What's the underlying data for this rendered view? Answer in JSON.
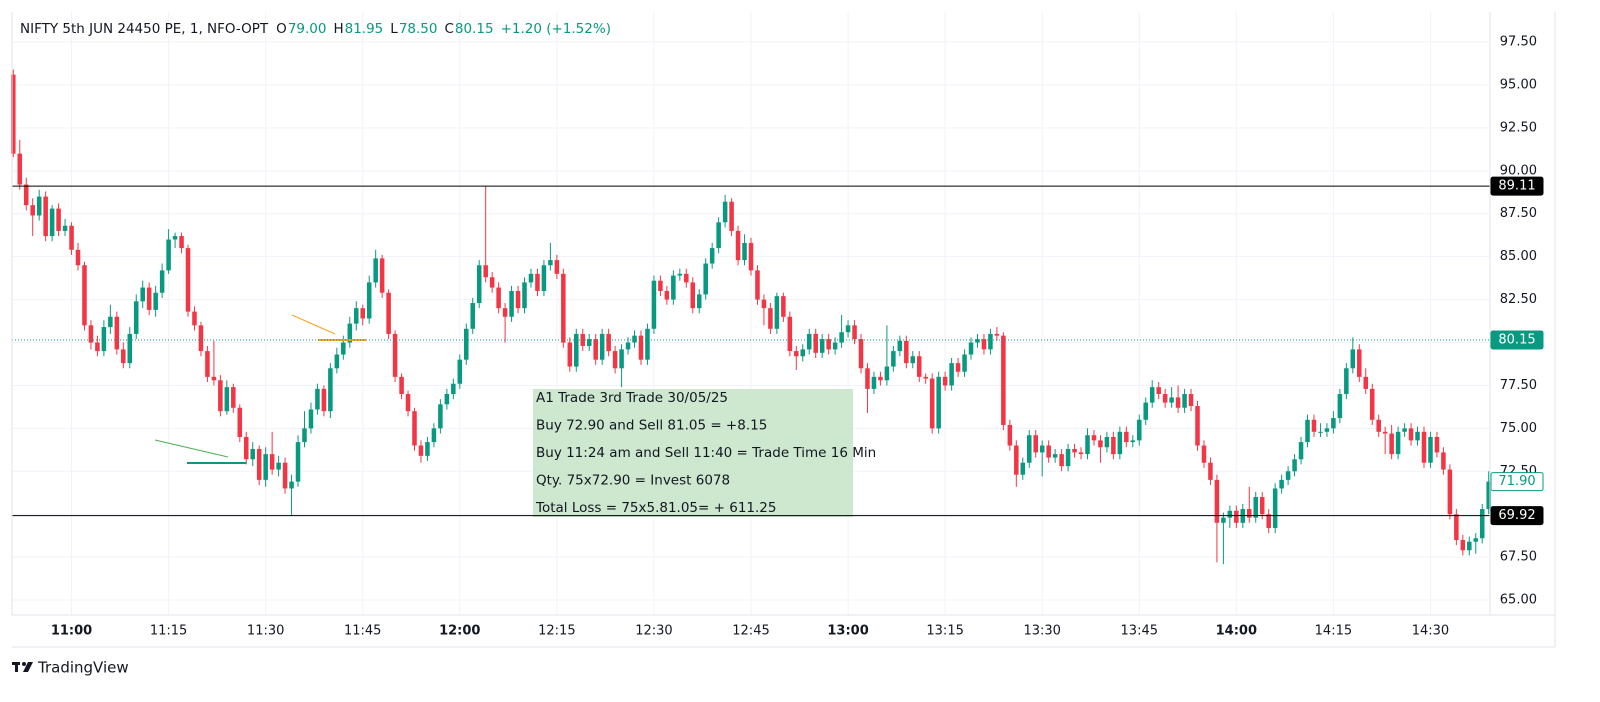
{
  "chart_data": {
    "type": "candlestick",
    "title": "NIFTY 5th JUN 24450 PE, 1, NFO-OPT",
    "ohlc_header": [
      {
        "key": "O",
        "value": "79.00"
      },
      {
        "key": "H",
        "value": "81.95"
      },
      {
        "key": "L",
        "value": "78.50"
      },
      {
        "key": "C",
        "value": "80.15"
      }
    ],
    "change": "+1.20 (+1.52%)",
    "up_color": "#089981",
    "down_color": "#f23645",
    "xlim": [
      -0.2,
      228.2
    ],
    "ylim": [
      64.13,
      99.25
    ],
    "xticks": [
      {
        "value": 9,
        "label": "11:00"
      },
      {
        "value": 24,
        "label": "11:15"
      },
      {
        "value": 39,
        "label": "11:30"
      },
      {
        "value": 54,
        "label": "11:45"
      },
      {
        "value": 69,
        "label": "12:00"
      },
      {
        "value": 84,
        "label": "12:15"
      },
      {
        "value": 99,
        "label": "12:30"
      },
      {
        "value": 114,
        "label": "12:45"
      },
      {
        "value": 129,
        "label": "13:00"
      },
      {
        "value": 144,
        "label": "13:15"
      },
      {
        "value": 159,
        "label": "13:30"
      },
      {
        "value": 174,
        "label": "13:45"
      },
      {
        "value": 189,
        "label": "14:00"
      },
      {
        "value": 204,
        "label": "14:15"
      },
      {
        "value": 219,
        "label": "14:30"
      }
    ],
    "yticks": [
      {
        "value": 65,
        "label": "65.00"
      },
      {
        "value": 67.5,
        "label": "67.50"
      },
      {
        "value": 70,
        "label": "70.00"
      },
      {
        "value": 72.5,
        "label": "72.50"
      },
      {
        "value": 75,
        "label": "75.00"
      },
      {
        "value": 77.5,
        "label": "77.50"
      },
      {
        "value": 80,
        "label": "80.00"
      },
      {
        "value": 82.5,
        "label": "82.50"
      },
      {
        "value": 85,
        "label": "85.00"
      },
      {
        "value": 87.5,
        "label": "87.50"
      },
      {
        "value": 90,
        "label": "90.00"
      },
      {
        "value": 92.5,
        "label": "92.50"
      },
      {
        "value": 95,
        "label": "95.00"
      },
      {
        "value": 97.5,
        "label": "97.50"
      }
    ],
    "grid": true,
    "price_lines": [
      {
        "value": 89.11,
        "style": "solid",
        "color": "#000000"
      },
      {
        "value": 80.15,
        "style": "dotted",
        "color": "#089981"
      },
      {
        "value": 71.9,
        "label": "71.90",
        "style": "none",
        "color": "#089981"
      },
      {
        "value": 69.92,
        "style": "solid",
        "color": "#000000"
      }
    ],
    "annotation": [
      "A1 Trade  3rd Trade 30/05/25",
      "Buy 72.90 and Sell 81.05 =  +8.15",
      "Buy 11:24 am and Sell 11:40 = Trade Time 16 Min",
      "Qty. 75x72.90 = Invest 6078",
      "Total Loss = 75x5.81.05= + 611.25"
    ],
    "brand": "TradingView",
    "candles": [
      [
        95.6,
        95.9,
        90.8,
        91.0
      ],
      [
        91.0,
        91.8,
        88.9,
        89.2
      ],
      [
        89.2,
        89.6,
        87.7,
        88.0
      ],
      [
        88.0,
        88.4,
        86.2,
        87.4
      ],
      [
        87.4,
        88.9,
        87.1,
        88.5
      ],
      [
        88.5,
        88.8,
        85.9,
        86.2
      ],
      [
        86.2,
        88.0,
        85.9,
        87.8
      ],
      [
        87.8,
        88.1,
        86.2,
        86.5
      ],
      [
        86.5,
        87.2,
        86.2,
        86.8
      ],
      [
        86.8,
        87.0,
        85.1,
        85.4
      ],
      [
        85.4,
        85.8,
        84.2,
        84.5
      ],
      [
        84.5,
        84.7,
        80.7,
        81.0
      ],
      [
        81.0,
        81.3,
        79.6,
        80.0
      ],
      [
        80.0,
        80.4,
        79.2,
        79.5
      ],
      [
        79.5,
        81.3,
        79.2,
        80.9
      ],
      [
        80.9,
        82.2,
        80.5,
        81.5
      ],
      [
        81.5,
        81.8,
        79.3,
        79.6
      ],
      [
        79.6,
        80.0,
        78.5,
        78.8
      ],
      [
        78.8,
        80.9,
        78.5,
        80.5
      ],
      [
        80.5,
        82.8,
        80.2,
        82.4
      ],
      [
        82.4,
        83.6,
        82.0,
        83.2
      ],
      [
        83.2,
        83.5,
        81.6,
        81.9
      ],
      [
        81.9,
        83.3,
        81.5,
        82.9
      ],
      [
        82.9,
        84.6,
        82.6,
        84.2
      ],
      [
        84.2,
        86.6,
        84.0,
        86.0
      ],
      [
        86.0,
        86.4,
        85.5,
        86.2
      ],
      [
        86.2,
        86.4,
        85.2,
        85.5
      ],
      [
        85.5,
        85.7,
        81.5,
        81.8
      ],
      [
        81.8,
        82.1,
        80.7,
        81.0
      ],
      [
        81.0,
        81.2,
        79.2,
        79.5
      ],
      [
        79.5,
        79.8,
        77.7,
        78.0
      ],
      [
        78.0,
        80.1,
        77.5,
        77.8
      ],
      [
        77.8,
        78.1,
        75.7,
        76.0
      ],
      [
        76.0,
        77.8,
        75.8,
        77.4
      ],
      [
        77.4,
        77.6,
        75.9,
        76.2
      ],
      [
        76.2,
        76.4,
        74.2,
        74.5
      ],
      [
        74.5,
        74.8,
        72.9,
        73.2
      ],
      [
        73.2,
        74.2,
        72.8,
        73.8
      ],
      [
        73.8,
        74.0,
        71.7,
        72.0
      ],
      [
        72.0,
        73.9,
        71.6,
        73.5
      ],
      [
        73.5,
        74.8,
        72.3,
        72.6
      ],
      [
        72.6,
        73.4,
        72.2,
        73.0
      ],
      [
        73.0,
        73.3,
        71.2,
        71.5
      ],
      [
        71.5,
        72.3,
        69.9,
        71.9
      ],
      [
        71.9,
        74.6,
        71.6,
        74.2
      ],
      [
        74.2,
        76.0,
        73.9,
        75.0
      ],
      [
        75.0,
        76.5,
        74.7,
        76.1
      ],
      [
        76.1,
        77.6,
        75.8,
        77.3
      ],
      [
        77.3,
        77.5,
        75.7,
        76.0
      ],
      [
        76.0,
        78.8,
        75.6,
        78.5
      ],
      [
        78.5,
        79.7,
        78.2,
        79.3
      ],
      [
        79.3,
        80.4,
        79.0,
        80.0
      ],
      [
        80.0,
        81.5,
        79.7,
        81.1
      ],
      [
        81.1,
        82.4,
        80.7,
        82.0
      ],
      [
        82.0,
        82.2,
        81.0,
        81.4
      ],
      [
        81.4,
        83.9,
        81.1,
        83.5
      ],
      [
        83.5,
        85.4,
        83.2,
        84.9
      ],
      [
        84.9,
        85.1,
        82.6,
        82.9
      ],
      [
        82.9,
        83.1,
        80.2,
        80.5
      ],
      [
        80.5,
        80.7,
        77.7,
        78.0
      ],
      [
        78.0,
        78.2,
        76.7,
        77.0
      ],
      [
        77.0,
        77.2,
        75.7,
        76.0
      ],
      [
        76.0,
        76.2,
        73.7,
        74.0
      ],
      [
        74.0,
        74.3,
        73.0,
        73.4
      ],
      [
        73.4,
        74.5,
        73.1,
        74.2
      ],
      [
        74.2,
        75.3,
        73.9,
        75.0
      ],
      [
        75.0,
        76.7,
        74.7,
        76.4
      ],
      [
        76.4,
        77.3,
        76.1,
        77.0
      ],
      [
        77.0,
        77.9,
        76.7,
        77.6
      ],
      [
        77.6,
        79.3,
        77.3,
        79.0
      ],
      [
        79.0,
        81.1,
        78.7,
        80.8
      ],
      [
        80.8,
        82.6,
        80.5,
        82.3
      ],
      [
        82.3,
        84.8,
        82.0,
        84.5
      ],
      [
        84.5,
        89.1,
        83.5,
        83.8
      ],
      [
        83.8,
        84.1,
        82.9,
        83.2
      ],
      [
        83.2,
        83.5,
        81.7,
        82.0
      ],
      [
        82.0,
        82.3,
        80.0,
        81.5
      ],
      [
        81.5,
        83.3,
        81.2,
        83.0
      ],
      [
        83.0,
        83.3,
        81.7,
        82.0
      ],
      [
        82.0,
        83.8,
        81.7,
        83.5
      ],
      [
        83.5,
        84.3,
        83.2,
        84.0
      ],
      [
        84.0,
        84.3,
        82.7,
        83.0
      ],
      [
        83.0,
        84.8,
        82.7,
        84.5
      ],
      [
        84.5,
        85.8,
        84.2,
        84.8
      ],
      [
        84.8,
        85.1,
        83.7,
        84.0
      ],
      [
        84.0,
        84.3,
        79.7,
        80.0
      ],
      [
        80.0,
        80.3,
        78.3,
        78.6
      ],
      [
        78.6,
        80.8,
        78.3,
        80.5
      ],
      [
        80.5,
        80.8,
        79.5,
        79.8
      ],
      [
        79.8,
        80.5,
        79.5,
        80.2
      ],
      [
        80.2,
        80.5,
        78.7,
        79.0
      ],
      [
        79.0,
        80.8,
        78.7,
        80.5
      ],
      [
        80.5,
        80.8,
        79.2,
        79.5
      ],
      [
        79.5,
        79.8,
        78.2,
        78.5
      ],
      [
        78.5,
        79.9,
        77.4,
        79.6
      ],
      [
        79.6,
        80.3,
        79.3,
        80.0
      ],
      [
        80.0,
        80.7,
        79.7,
        80.4
      ],
      [
        80.4,
        80.7,
        78.7,
        79.0
      ],
      [
        79.0,
        81.1,
        78.7,
        80.8
      ],
      [
        80.8,
        83.9,
        80.5,
        83.6
      ],
      [
        83.6,
        83.9,
        82.7,
        83.0
      ],
      [
        83.0,
        83.3,
        82.2,
        82.5
      ],
      [
        82.5,
        84.2,
        82.2,
        83.9
      ],
      [
        83.9,
        84.3,
        83.6,
        84.0
      ],
      [
        84.0,
        84.3,
        83.2,
        83.5
      ],
      [
        83.5,
        83.8,
        81.7,
        82.0
      ],
      [
        82.0,
        83.1,
        81.7,
        82.8
      ],
      [
        82.8,
        84.9,
        82.5,
        84.6
      ],
      [
        84.6,
        85.8,
        84.3,
        85.5
      ],
      [
        85.5,
        87.3,
        85.2,
        87.0
      ],
      [
        87.0,
        88.6,
        86.7,
        88.2
      ],
      [
        88.2,
        88.4,
        86.2,
        86.5
      ],
      [
        86.5,
        86.8,
        84.5,
        84.8
      ],
      [
        84.8,
        86.3,
        84.5,
        85.8
      ],
      [
        85.8,
        86.1,
        83.9,
        84.2
      ],
      [
        84.2,
        84.5,
        82.2,
        82.5
      ],
      [
        82.5,
        82.8,
        81.0,
        82.0
      ],
      [
        82.0,
        82.3,
        80.5,
        80.8
      ],
      [
        80.8,
        82.9,
        80.5,
        82.7
      ],
      [
        82.7,
        82.9,
        81.2,
        81.5
      ],
      [
        81.5,
        81.8,
        79.2,
        79.5
      ],
      [
        79.5,
        79.8,
        78.4,
        79.2
      ],
      [
        79.2,
        79.9,
        78.9,
        79.6
      ],
      [
        79.6,
        80.8,
        79.3,
        80.5
      ],
      [
        80.5,
        80.8,
        79.1,
        79.4
      ],
      [
        79.4,
        80.5,
        79.1,
        80.2
      ],
      [
        80.2,
        80.5,
        79.3,
        79.6
      ],
      [
        79.6,
        80.3,
        79.3,
        80.0
      ],
      [
        80.0,
        81.6,
        79.7,
        80.6
      ],
      [
        80.6,
        81.3,
        80.3,
        81.0
      ],
      [
        81.0,
        81.3,
        79.9,
        80.2
      ],
      [
        80.2,
        80.5,
        78.2,
        78.5
      ],
      [
        78.5,
        78.8,
        75.9,
        77.3
      ],
      [
        77.3,
        78.3,
        77.0,
        78.0
      ],
      [
        78.0,
        78.3,
        77.5,
        77.8
      ],
      [
        77.8,
        81.0,
        77.5,
        78.6
      ],
      [
        78.6,
        79.8,
        78.3,
        79.5
      ],
      [
        79.5,
        80.4,
        79.2,
        80.1
      ],
      [
        80.1,
        80.4,
        78.5,
        78.8
      ],
      [
        78.8,
        79.5,
        78.5,
        79.2
      ],
      [
        79.2,
        79.5,
        77.7,
        78.0
      ],
      [
        78.0,
        78.2,
        77.6,
        77.9
      ],
      [
        77.9,
        78.2,
        74.7,
        75.0
      ],
      [
        75.0,
        78.3,
        74.7,
        78.0
      ],
      [
        78.0,
        78.3,
        77.2,
        77.5
      ],
      [
        77.5,
        79.1,
        77.2,
        78.8
      ],
      [
        78.8,
        79.1,
        78.0,
        78.3
      ],
      [
        78.3,
        79.6,
        78.0,
        79.3
      ],
      [
        79.3,
        80.3,
        79.0,
        80.0
      ],
      [
        80.0,
        80.5,
        79.7,
        80.2
      ],
      [
        80.2,
        80.5,
        79.3,
        79.6
      ],
      [
        79.6,
        80.8,
        79.3,
        80.5
      ],
      [
        80.5,
        80.9,
        80.1,
        80.4
      ],
      [
        80.4,
        80.6,
        74.9,
        75.2
      ],
      [
        75.2,
        75.5,
        73.7,
        74.0
      ],
      [
        74.0,
        74.3,
        71.6,
        72.3
      ],
      [
        72.3,
        73.3,
        72.0,
        73.0
      ],
      [
        73.0,
        74.9,
        72.7,
        74.6
      ],
      [
        74.6,
        74.9,
        73.3,
        73.6
      ],
      [
        73.6,
        74.3,
        72.2,
        74.0
      ],
      [
        74.0,
        74.3,
        73.0,
        73.3
      ],
      [
        73.3,
        73.8,
        73.0,
        73.5
      ],
      [
        73.5,
        73.8,
        72.5,
        72.8
      ],
      [
        72.8,
        74.1,
        72.5,
        73.8
      ],
      [
        73.8,
        74.1,
        73.3,
        73.6
      ],
      [
        73.6,
        73.9,
        73.2,
        73.5
      ],
      [
        73.5,
        75.0,
        73.2,
        74.6
      ],
      [
        74.6,
        74.9,
        74.0,
        74.3
      ],
      [
        74.3,
        74.6,
        73.0,
        73.9
      ],
      [
        73.9,
        74.8,
        73.6,
        74.5
      ],
      [
        74.5,
        74.8,
        73.2,
        73.5
      ],
      [
        73.5,
        75.1,
        73.2,
        74.8
      ],
      [
        74.8,
        75.1,
        73.9,
        74.2
      ],
      [
        74.2,
        74.6,
        73.9,
        74.3
      ],
      [
        74.3,
        75.8,
        74.0,
        75.5
      ],
      [
        75.5,
        76.8,
        75.2,
        76.5
      ],
      [
        76.5,
        77.8,
        76.2,
        77.4
      ],
      [
        77.4,
        77.7,
        76.7,
        77.0
      ],
      [
        77.0,
        77.3,
        76.2,
        76.5
      ],
      [
        76.5,
        77.4,
        76.2,
        76.8
      ],
      [
        76.8,
        77.5,
        75.9,
        76.2
      ],
      [
        76.2,
        77.3,
        75.9,
        77.0
      ],
      [
        77.0,
        77.3,
        76.0,
        76.3
      ],
      [
        76.3,
        76.6,
        73.7,
        74.0
      ],
      [
        74.0,
        74.3,
        72.7,
        73.0
      ],
      [
        73.0,
        73.3,
        71.7,
        72.0
      ],
      [
        72.0,
        72.3,
        67.2,
        69.5
      ],
      [
        69.5,
        70.1,
        67.1,
        69.8
      ],
      [
        69.8,
        70.5,
        69.2,
        70.2
      ],
      [
        70.2,
        70.5,
        69.2,
        69.5
      ],
      [
        69.5,
        70.6,
        69.2,
        70.3
      ],
      [
        70.3,
        71.6,
        69.5,
        69.8
      ],
      [
        69.8,
        71.3,
        69.5,
        71.0
      ],
      [
        71.0,
        71.3,
        69.7,
        70.0
      ],
      [
        70.0,
        70.3,
        68.9,
        69.2
      ],
      [
        69.2,
        71.8,
        68.9,
        71.5
      ],
      [
        71.5,
        72.3,
        71.2,
        72.0
      ],
      [
        72.0,
        72.8,
        71.7,
        72.5
      ],
      [
        72.5,
        73.5,
        72.2,
        73.2
      ],
      [
        73.2,
        74.5,
        72.9,
        74.2
      ],
      [
        74.2,
        75.8,
        73.9,
        75.5
      ],
      [
        75.5,
        75.8,
        74.5,
        74.8
      ],
      [
        74.8,
        75.3,
        74.5,
        74.8
      ],
      [
        74.8,
        75.3,
        74.5,
        75.0
      ],
      [
        75.0,
        76.0,
        74.7,
        75.6
      ],
      [
        75.6,
        77.3,
        75.3,
        77.0
      ],
      [
        77.0,
        78.8,
        76.7,
        78.5
      ],
      [
        78.5,
        80.3,
        78.2,
        79.6
      ],
      [
        79.6,
        79.9,
        77.7,
        78.0
      ],
      [
        78.0,
        78.5,
        77.0,
        77.3
      ],
      [
        77.3,
        77.6,
        75.2,
        75.5
      ],
      [
        75.5,
        75.8,
        74.5,
        74.8
      ],
      [
        74.8,
        75.1,
        73.5,
        74.7
      ],
      [
        74.7,
        75.2,
        73.2,
        73.5
      ],
      [
        73.5,
        75.1,
        73.2,
        74.8
      ],
      [
        74.8,
        75.3,
        74.5,
        75.0
      ],
      [
        75.0,
        75.3,
        74.0,
        74.3
      ],
      [
        74.3,
        75.1,
        74.0,
        74.8
      ],
      [
        74.8,
        75.1,
        72.7,
        73.0
      ],
      [
        73.0,
        74.8,
        72.7,
        74.5
      ],
      [
        74.5,
        74.8,
        73.3,
        73.6
      ],
      [
        73.6,
        73.9,
        72.3,
        72.6
      ],
      [
        72.6,
        72.9,
        69.7,
        70.0
      ],
      [
        70.0,
        70.3,
        68.2,
        68.5
      ],
      [
        68.5,
        68.8,
        67.6,
        67.9
      ],
      [
        67.9,
        68.7,
        67.6,
        68.4
      ],
      [
        68.4,
        68.9,
        67.7,
        68.6
      ],
      [
        68.6,
        70.6,
        68.3,
        70.3
      ],
      [
        70.3,
        72.5,
        70.0,
        71.9
      ]
    ]
  }
}
